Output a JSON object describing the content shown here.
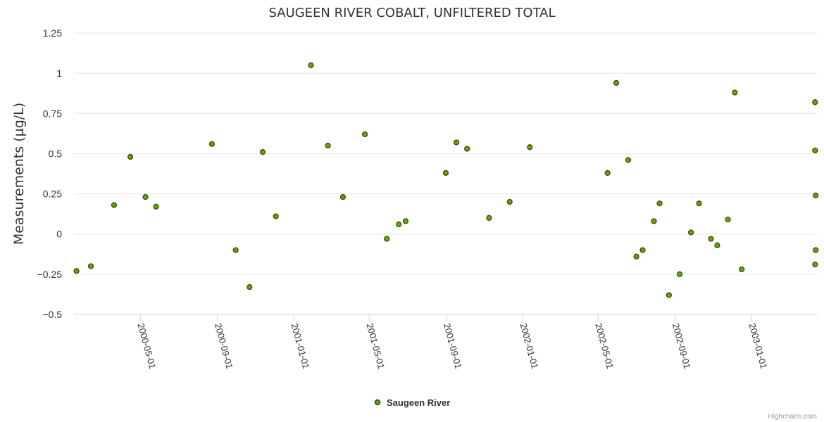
{
  "chart_data": {
    "type": "scatter",
    "title": "SAUGEEN RIVER COBALT, UNFILTERED TOTAL",
    "xlabel": "",
    "ylabel": "Measurements (µg/L)",
    "x_type": "date",
    "ylim": [
      -0.5,
      1.25
    ],
    "yticks": [
      -0.5,
      -0.25,
      0,
      0.25,
      0.5,
      0.75,
      1,
      1.25
    ],
    "ytick_labels": [
      "−0.5",
      "−0.25",
      "0",
      "0.25",
      "0.5",
      "0.75",
      "1",
      "1.25"
    ],
    "xticks": [
      "2000-05-01",
      "2000-09-01",
      "2001-01-01",
      "2001-05-01",
      "2001-09-01",
      "2002-01-01",
      "2002-05-01",
      "2002-09-01",
      "2003-01-01"
    ],
    "xlim": [
      "2000-01-16",
      "2003-04-15"
    ],
    "grid": true,
    "legend_position": "bottom-center",
    "series": [
      {
        "name": "Saugeen River",
        "color": "#6aa10a",
        "points": [
          {
            "x": "2000-01-20",
            "y": -0.23
          },
          {
            "x": "2000-02-12",
            "y": -0.2
          },
          {
            "x": "2000-03-20",
            "y": 0.18
          },
          {
            "x": "2000-04-15",
            "y": 0.48
          },
          {
            "x": "2000-05-09",
            "y": 0.23
          },
          {
            "x": "2000-05-26",
            "y": 0.17
          },
          {
            "x": "2000-08-23",
            "y": 0.56
          },
          {
            "x": "2000-09-30",
            "y": -0.1
          },
          {
            "x": "2000-10-22",
            "y": -0.33
          },
          {
            "x": "2000-11-12",
            "y": 0.51
          },
          {
            "x": "2000-12-03",
            "y": 0.11
          },
          {
            "x": "2001-01-28",
            "y": 1.05
          },
          {
            "x": "2001-02-24",
            "y": 0.55
          },
          {
            "x": "2001-03-20",
            "y": 0.23
          },
          {
            "x": "2001-04-24",
            "y": 0.62
          },
          {
            "x": "2001-05-29",
            "y": -0.03
          },
          {
            "x": "2001-06-17",
            "y": 0.06
          },
          {
            "x": "2001-06-28",
            "y": 0.08
          },
          {
            "x": "2001-08-31",
            "y": 0.38
          },
          {
            "x": "2001-09-17",
            "y": 0.57
          },
          {
            "x": "2001-10-04",
            "y": 0.53
          },
          {
            "x": "2001-11-08",
            "y": 0.1
          },
          {
            "x": "2001-12-11",
            "y": 0.2
          },
          {
            "x": "2002-01-12",
            "y": 0.54
          },
          {
            "x": "2002-05-16",
            "y": 0.38
          },
          {
            "x": "2002-05-30",
            "y": 0.94
          },
          {
            "x": "2002-06-18",
            "y": 0.46
          },
          {
            "x": "2002-07-01",
            "y": -0.14
          },
          {
            "x": "2002-07-11",
            "y": -0.1
          },
          {
            "x": "2002-07-29",
            "y": 0.08
          },
          {
            "x": "2002-08-07",
            "y": 0.19
          },
          {
            "x": "2002-08-22",
            "y": -0.38
          },
          {
            "x": "2002-09-08",
            "y": -0.25
          },
          {
            "x": "2002-09-26",
            "y": 0.01
          },
          {
            "x": "2002-10-09",
            "y": 0.19
          },
          {
            "x": "2002-10-28",
            "y": -0.03
          },
          {
            "x": "2002-11-07",
            "y": -0.07
          },
          {
            "x": "2002-11-24",
            "y": 0.09
          },
          {
            "x": "2002-12-05",
            "y": 0.88
          },
          {
            "x": "2002-12-16",
            "y": -0.22
          },
          {
            "x": "2003-04-12",
            "y": 0.82
          },
          {
            "x": "2003-04-12",
            "y": 0.52
          },
          {
            "x": "2003-04-13",
            "y": 0.24
          },
          {
            "x": "2003-04-13",
            "y": -0.1
          },
          {
            "x": "2003-04-12",
            "y": -0.19
          }
        ]
      }
    ],
    "credits": "Highcharts.com"
  }
}
